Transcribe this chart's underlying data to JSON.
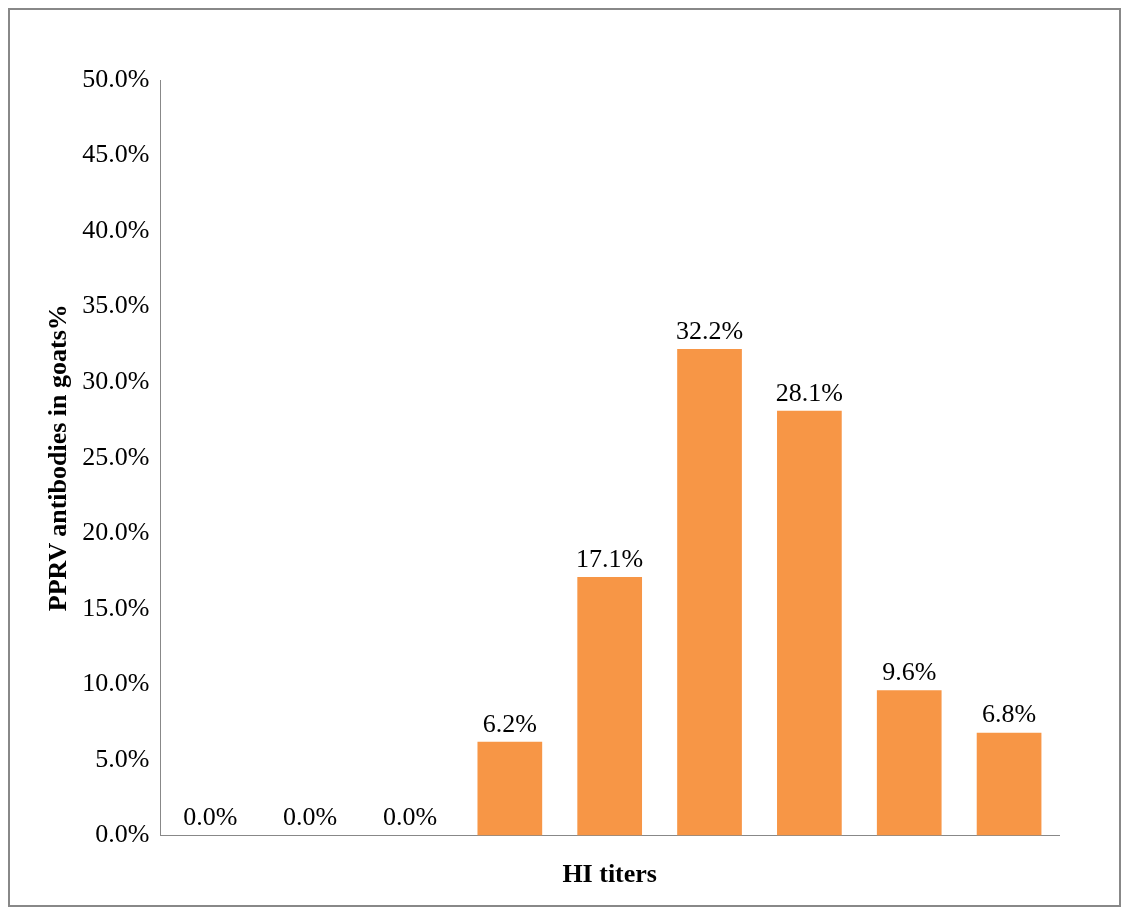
{
  "chart_data": {
    "type": "bar",
    "xlabel": "HI titers",
    "ylabel": "PPRV antibodies in goats%",
    "categories": [
      null,
      null,
      null,
      null,
      null,
      null,
      null,
      null,
      null
    ],
    "values": [
      0,
      0,
      0,
      6.2,
      17.1,
      32.2,
      28.1,
      9.6,
      6.8
    ],
    "value_labels": [
      "0.0%",
      "0.0%",
      "0.0%",
      "6.2%",
      "17.1%",
      "32.2%",
      "28.1%",
      "9.6%",
      "6.8%"
    ],
    "colors": [
      "#5f5f5f",
      "#5f5f5f",
      "#5f5f5f",
      "#f79646",
      "#f79646",
      "#f79646",
      "#f79646",
      "#f79646",
      "#f79646"
    ],
    "ylim": [
      0,
      50
    ],
    "yticks": [
      {
        "value": 0,
        "label": "0.0%"
      },
      {
        "value": 5,
        "label": "5.0%"
      },
      {
        "value": 10,
        "label": "10.0%"
      },
      {
        "value": 15,
        "label": "15.0%"
      },
      {
        "value": 20,
        "label": "20.0%"
      },
      {
        "value": 25,
        "label": "25.0%"
      },
      {
        "value": 30,
        "label": "30.0%"
      },
      {
        "value": 35,
        "label": "35.0%"
      },
      {
        "value": 40,
        "label": "40.0%"
      },
      {
        "value": 45,
        "label": "45.0%"
      },
      {
        "value": 50,
        "label": "50.0%"
      }
    ],
    "grid": false,
    "legend": false
  }
}
